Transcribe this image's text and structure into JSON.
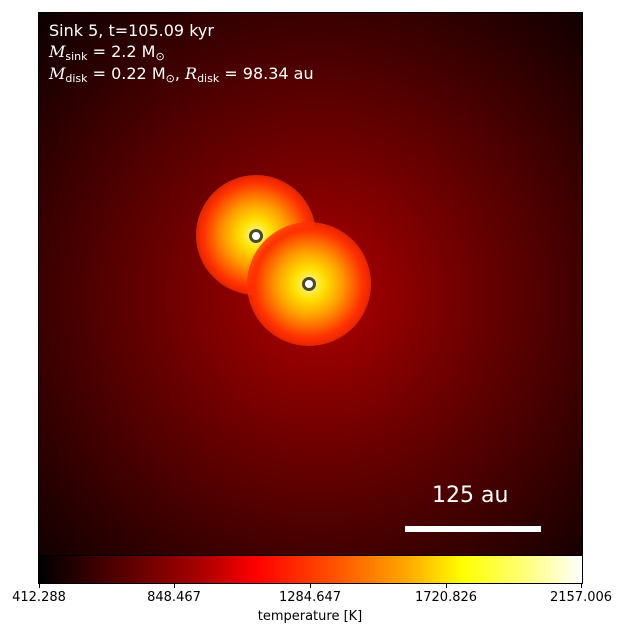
{
  "annotation": {
    "line1": "Sink 5, t=105.09 kyr",
    "msink_symbol": "M",
    "msink_sub": "sink",
    "msink_value": " = 2.2 M",
    "msink_unit_sub": "⊙",
    "mdisk_symbol": "M",
    "mdisk_sub": "disk",
    "mdisk_value": " = 0.22 M",
    "mdisk_unit_sub": "⊙",
    "comma": ", ",
    "rdisk_symbol": "R",
    "rdisk_sub": "disk",
    "rdisk_value": " = 98.34 au"
  },
  "scale_bar": {
    "label": "125 au"
  },
  "colorbar": {
    "ticks": [
      "412.288",
      "848.467",
      "1284.647",
      "1720.826",
      "2157.006"
    ],
    "label": "temperature [K]"
  }
}
